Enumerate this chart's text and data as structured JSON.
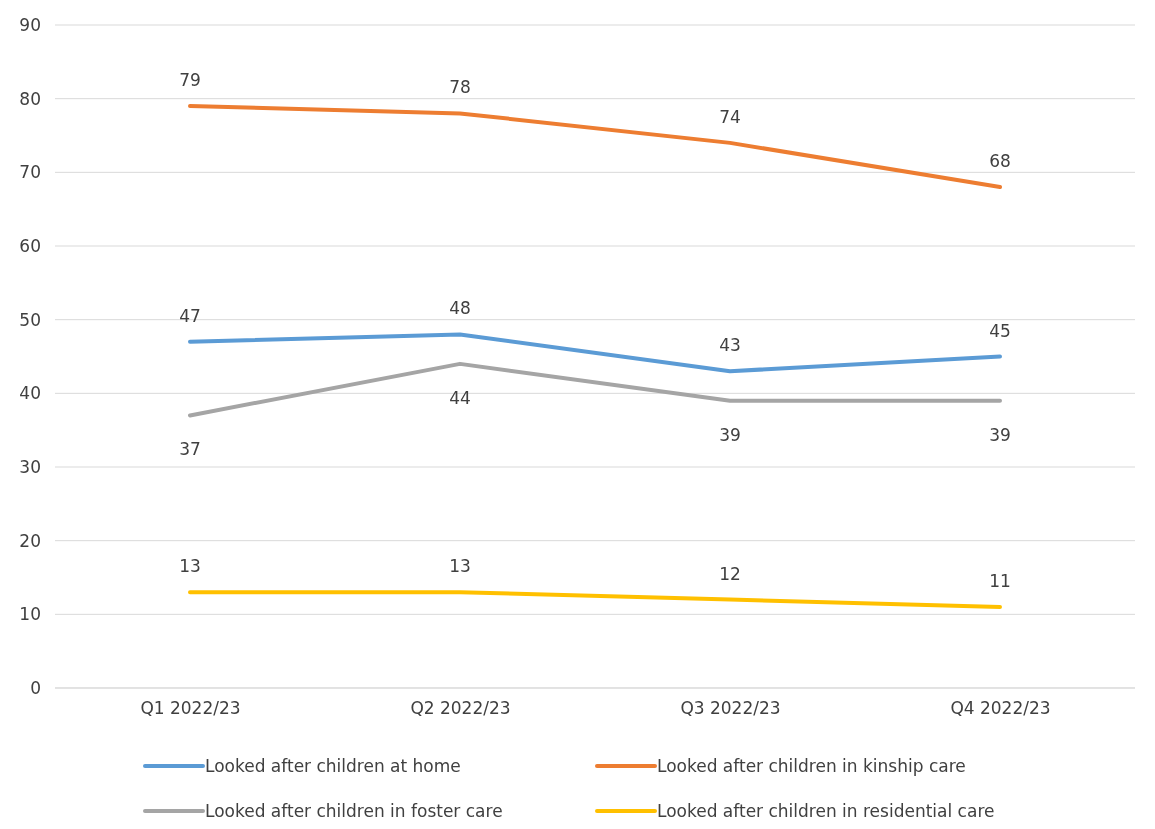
{
  "chart_data": {
    "type": "line",
    "categories": [
      "Q1 2022/23",
      "Q2 2022/23",
      "Q3 2022/23",
      "Q4 2022/23"
    ],
    "series": [
      {
        "name": "Looked after children at home",
        "color": "#5b9bd5",
        "values": [
          47,
          48,
          43,
          45
        ]
      },
      {
        "name": "Looked after children in kinship care",
        "color": "#ed7d31",
        "values": [
          79,
          78,
          74,
          68
        ]
      },
      {
        "name": "Looked after children in foster care",
        "color": "#a5a5a5",
        "values": [
          37,
          44,
          39,
          39
        ]
      },
      {
        "name": "Looked after children in residential care",
        "color": "#ffc000",
        "values": [
          13,
          13,
          12,
          11
        ]
      }
    ],
    "ylim": [
      0,
      90
    ],
    "yticks": [
      0,
      10,
      20,
      30,
      40,
      50,
      60,
      70,
      80,
      90
    ],
    "grid": "y",
    "legend": "bottom",
    "data_labels": true,
    "marker": "none",
    "line_style": "solid"
  }
}
